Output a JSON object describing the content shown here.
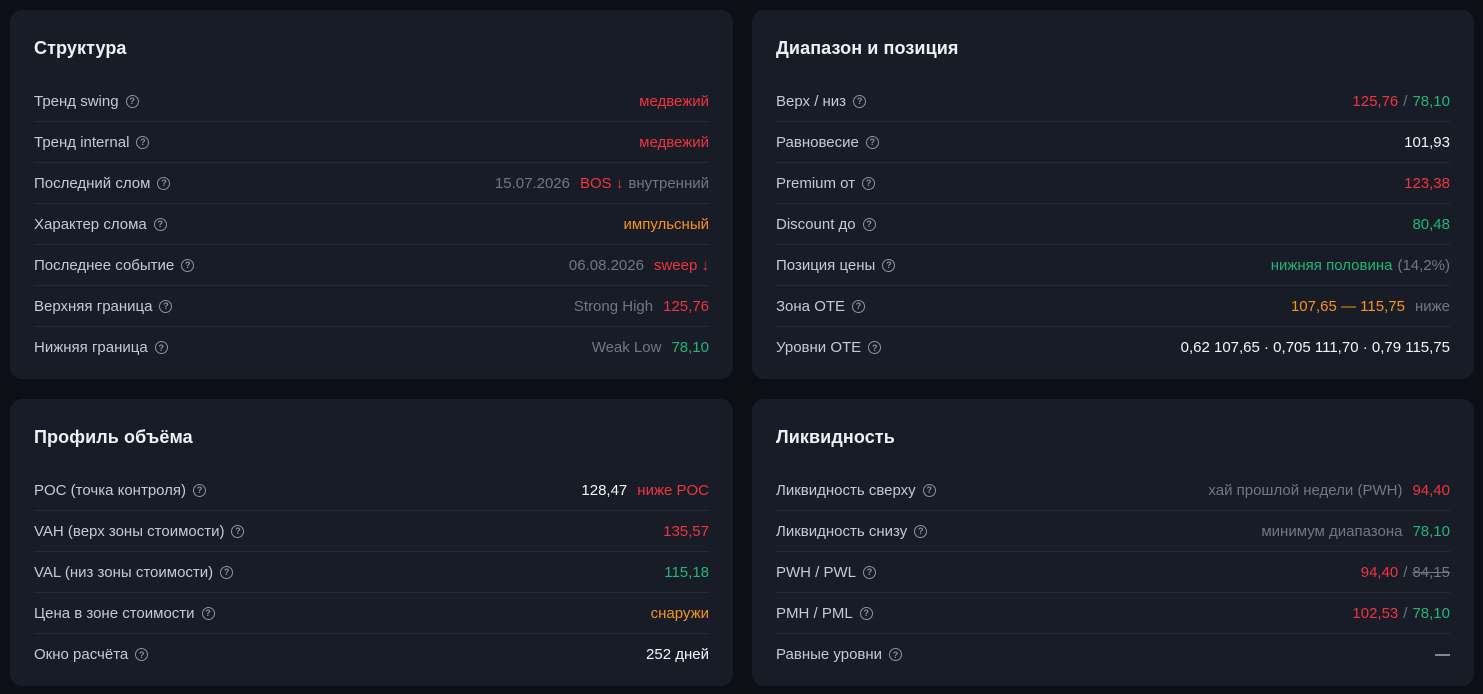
{
  "structure": {
    "title": "Структура",
    "rows": [
      {
        "label": "Тренд swing",
        "value": "медвежий"
      },
      {
        "label": "Тренд internal",
        "value": "медвежий"
      },
      {
        "label": "Последний слом",
        "date": "15.07.2026",
        "event": "BOS ↓",
        "note": "внутренний"
      },
      {
        "label": "Характер слома",
        "value": "импульсный"
      },
      {
        "label": "Последнее событие",
        "date": "06.08.2026",
        "event": "sweep ↓"
      },
      {
        "label": "Верхняя граница",
        "note": "Strong High",
        "value": "125,76"
      },
      {
        "label": "Нижняя граница",
        "note": "Weak Low",
        "value": "78,10"
      }
    ]
  },
  "range": {
    "title": "Диапазон и позиция",
    "rows": [
      {
        "label": "Верх / низ",
        "high": "125,76",
        "sep": "/",
        "low": "78,10"
      },
      {
        "label": "Равновесие",
        "value": "101,93"
      },
      {
        "label": "Premium от",
        "value": "123,38"
      },
      {
        "label": "Discount до",
        "value": "80,48"
      },
      {
        "label": "Позиция цены",
        "value": "нижняя половина",
        "note": "(14,2%)"
      },
      {
        "label": "Зона OTE",
        "value": "107,65 — 115,75",
        "note": "ниже"
      },
      {
        "label": "Уровни OTE",
        "value": "0,62 107,65 · 0,705 111,70 · 0,79 115,75"
      }
    ]
  },
  "volume": {
    "title": "Профиль объёма",
    "rows": [
      {
        "label": "POC (точка контроля)",
        "value": "128,47",
        "note": "ниже POC"
      },
      {
        "label": "VAH (верх зоны стоимости)",
        "value": "135,57"
      },
      {
        "label": "VAL (низ зоны стоимости)",
        "value": "115,18"
      },
      {
        "label": "Цена в зоне стоимости",
        "value": "снаружи"
      },
      {
        "label": "Окно расчёта",
        "value": "252 дней"
      }
    ]
  },
  "liquidity": {
    "title": "Ликвидность",
    "rows": [
      {
        "label": "Ликвидность сверху",
        "note": "хай прошлой недели (PWH)",
        "value": "94,40"
      },
      {
        "label": "Ликвидность снизу",
        "note": "минимум диапазона",
        "value": "78,10"
      },
      {
        "label": "PWH / PWL",
        "high": "94,40",
        "sep": "/",
        "low": "84,15"
      },
      {
        "label": "PMH / PML",
        "high": "102,53",
        "sep": "/",
        "low": "78,10"
      },
      {
        "label": "Равные уровни",
        "value": "—"
      }
    ]
  },
  "help_glyph": "?",
  "colors": {
    "bearish": "#f0333f",
    "bullish": "#22b57a",
    "warning": "#f7931e",
    "muted": "#6f7787"
  }
}
